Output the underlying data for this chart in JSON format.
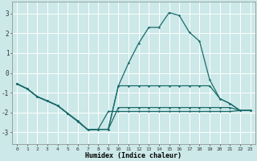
{
  "xlabel": "Humidex (Indice chaleur)",
  "xlim": [
    -0.5,
    23.5
  ],
  "ylim": [
    -3.6,
    3.6
  ],
  "xtick_labels": [
    "0",
    "1",
    "2",
    "3",
    "4",
    "5",
    "6",
    "7",
    "8",
    "9",
    "10",
    "11",
    "12",
    "13",
    "14",
    "15",
    "16",
    "17",
    "18",
    "19",
    "20",
    "21",
    "22",
    "23"
  ],
  "ytick_values": [
    -3,
    -2,
    -1,
    0,
    1,
    2,
    3
  ],
  "background_color": "#cce8e8",
  "grid_color": "#ffffff",
  "line_color": "#1a6b6b",
  "lines": [
    {
      "x": [
        0,
        1,
        2,
        3,
        4,
        5,
        6,
        7,
        8,
        9,
        10,
        11,
        12,
        13,
        14,
        15,
        16,
        17,
        18,
        19,
        20,
        21,
        22,
        23
      ],
      "y": [
        -0.55,
        -0.8,
        -1.2,
        -1.42,
        -1.65,
        -2.05,
        -2.45,
        -2.88,
        -2.85,
        -2.85,
        -0.65,
        0.5,
        1.5,
        2.3,
        2.3,
        3.05,
        2.9,
        2.05,
        1.6,
        -0.35,
        -1.3,
        -1.55,
        -1.9,
        -1.9
      ]
    },
    {
      "x": [
        0,
        1,
        2,
        3,
        4,
        5,
        6,
        7,
        8,
        9,
        10,
        11,
        12,
        13,
        14,
        15,
        16,
        17,
        18,
        19,
        20,
        21,
        22,
        23
      ],
      "y": [
        -0.55,
        -0.8,
        -1.2,
        -1.42,
        -1.65,
        -2.05,
        -2.45,
        -2.88,
        -2.85,
        -2.85,
        -0.65,
        -0.65,
        -0.65,
        -0.65,
        -0.65,
        -0.65,
        -0.65,
        -0.65,
        -0.65,
        -0.65,
        -1.3,
        -1.55,
        -1.9,
        -1.9
      ]
    },
    {
      "x": [
        0,
        1,
        2,
        3,
        4,
        5,
        6,
        7,
        8,
        9,
        10,
        11,
        12,
        13,
        14,
        15,
        16,
        17,
        18,
        19,
        20,
        21,
        22,
        23
      ],
      "y": [
        -0.55,
        -0.8,
        -1.2,
        -1.42,
        -1.65,
        -2.05,
        -2.45,
        -2.88,
        -2.85,
        -2.85,
        -1.75,
        -1.75,
        -1.75,
        -1.75,
        -1.75,
        -1.75,
        -1.75,
        -1.75,
        -1.75,
        -1.75,
        -1.75,
        -1.75,
        -1.9,
        -1.9
      ]
    },
    {
      "x": [
        0,
        1,
        2,
        3,
        4,
        5,
        6,
        7,
        8,
        9,
        10,
        11,
        12,
        13,
        14,
        15,
        16,
        17,
        18,
        19,
        20,
        21,
        22,
        23
      ],
      "y": [
        -0.55,
        -0.8,
        -1.2,
        -1.42,
        -1.65,
        -2.05,
        -2.42,
        -2.88,
        -2.85,
        -1.95,
        -1.95,
        -1.95,
        -1.95,
        -1.95,
        -1.95,
        -1.95,
        -1.95,
        -1.95,
        -1.95,
        -1.95,
        -1.95,
        -1.95,
        -1.9,
        -1.9
      ]
    }
  ]
}
